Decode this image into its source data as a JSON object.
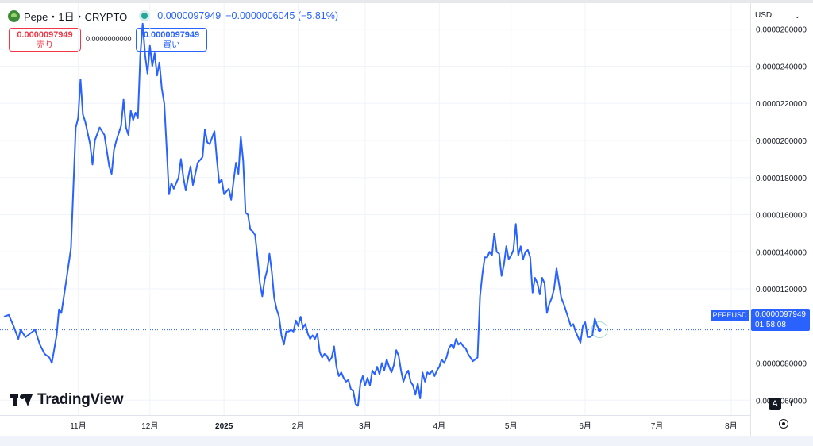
{
  "header": {
    "title": "Pepe・1日・CRYPTO",
    "price": "0.0000097949",
    "change": "−0.0000006045 (−5.81%)"
  },
  "trade": {
    "sell_price": "0.0000097949",
    "sell_label": "売り",
    "spread": "0.0000000000",
    "buy_price": "0.0000097949",
    "buy_label": "買い"
  },
  "currency": "USD",
  "watermark": "TradingView",
  "price_tag": {
    "pair": "PEPEUSD",
    "price": "0.0000097949",
    "countdown": "01:58:08"
  },
  "controls": {
    "auto": "A",
    "log": "L"
  },
  "colors": {
    "line": "#2962ff",
    "accent": "#2962ff",
    "sell": "#f23645",
    "live": "#26a69a"
  },
  "icons": [
    "pepe-logo-icon",
    "live-dot-icon",
    "chevron-down-icon",
    "tradingview-logo-icon",
    "gear-icon"
  ],
  "chart_data": {
    "type": "line",
    "title": "",
    "xlabel": "",
    "ylabel": "",
    "grid": true,
    "legend": "none",
    "ylim": [
      5.2e-06,
      2.74e-05
    ],
    "yticks": [
      "0.0000260000",
      "0.0000240000",
      "0.0000220000",
      "0.0000200000",
      "0.0000180000",
      "0.0000160000",
      "0.0000140000",
      "0.0000120000",
      "0.0000080000",
      "0.0000060000"
    ],
    "ytick_values": [
      2.6e-05,
      2.4e-05,
      2.2e-05,
      2e-05,
      1.8e-05,
      1.6e-05,
      1.4e-05,
      1.2e-05,
      8e-06,
      6e-06
    ],
    "xticks": [
      {
        "label": "11月",
        "day": 31
      },
      {
        "label": "12月",
        "day": 61
      },
      {
        "label": "2025",
        "day": 92
      },
      {
        "label": "2月",
        "day": 123
      },
      {
        "label": "3月",
        "day": 151
      },
      {
        "label": "4月",
        "day": 182
      },
      {
        "label": "5月",
        "day": 212
      },
      {
        "label": "6月",
        "day": 243
      },
      {
        "label": "7月",
        "day": 273
      },
      {
        "label": "8月",
        "day": 304
      }
    ],
    "last_value": 9.7949e-06,
    "series": [
      {
        "name": "",
        "values": [
          [
            0,
            1.05e-05
          ],
          [
            2,
            1.06e-05
          ],
          [
            4,
            1e-05
          ],
          [
            6,
            9.3e-06
          ],
          [
            7,
            9.8e-06
          ],
          [
            9,
            9.4e-06
          ],
          [
            11,
            9.6e-06
          ],
          [
            13,
            9.8e-06
          ],
          [
            15,
            9e-06
          ],
          [
            17,
            8.5e-06
          ],
          [
            19,
            8.3e-06
          ],
          [
            20,
            8e-06
          ],
          [
            22,
            9.5e-06
          ],
          [
            23,
            1.09e-05
          ],
          [
            24,
            1.07e-05
          ],
          [
            26,
            1.24e-05
          ],
          [
            28,
            1.42e-05
          ],
          [
            30,
            2.07e-05
          ],
          [
            31,
            2.12e-05
          ],
          [
            32,
            2.33e-05
          ],
          [
            33,
            2.14e-05
          ],
          [
            34,
            2.1e-05
          ],
          [
            36,
            1.98e-05
          ],
          [
            37,
            1.87e-05
          ],
          [
            38,
            2e-05
          ],
          [
            40,
            2.07e-05
          ],
          [
            42,
            2.03e-05
          ],
          [
            44,
            1.86e-05
          ],
          [
            45,
            1.82e-05
          ],
          [
            46,
            1.95e-05
          ],
          [
            47,
            2e-05
          ],
          [
            49,
            2.08e-05
          ],
          [
            50,
            2.22e-05
          ],
          [
            51,
            2.07e-05
          ],
          [
            52,
            2.03e-05
          ],
          [
            53,
            2.16e-05
          ],
          [
            54,
            2.11e-05
          ],
          [
            55,
            2.15e-05
          ],
          [
            56,
            2.12e-05
          ],
          [
            57,
            2.46e-05
          ],
          [
            58,
            2.63e-05
          ],
          [
            59,
            2.46e-05
          ],
          [
            60,
            2.36e-05
          ],
          [
            61,
            2.51e-05
          ],
          [
            62,
            2.4e-05
          ],
          [
            63,
            2.47e-05
          ],
          [
            64,
            2.35e-05
          ],
          [
            65,
            2.42e-05
          ],
          [
            66,
            2.28e-05
          ],
          [
            67,
            2.2e-05
          ],
          [
            68,
            1.96e-05
          ],
          [
            69,
            1.71e-05
          ],
          [
            70,
            1.77e-05
          ],
          [
            71,
            1.74e-05
          ],
          [
            73,
            1.8e-05
          ],
          [
            74,
            1.9e-05
          ],
          [
            75,
            1.8e-05
          ],
          [
            76,
            1.73e-05
          ],
          [
            77,
            1.8e-05
          ],
          [
            78,
            1.86e-05
          ],
          [
            79,
            1.76e-05
          ],
          [
            81,
            1.88e-05
          ],
          [
            83,
            1.91e-05
          ],
          [
            84,
            2.06e-05
          ],
          [
            85,
            1.99e-05
          ],
          [
            86,
            1.98e-05
          ],
          [
            88,
            2.05e-05
          ],
          [
            89,
            1.9e-05
          ],
          [
            90,
            1.77e-05
          ],
          [
            91,
            1.79e-05
          ],
          [
            92,
            1.71e-05
          ],
          [
            94,
            1.74e-05
          ],
          [
            95,
            1.68e-05
          ],
          [
            96,
            1.78e-05
          ],
          [
            97,
            1.88e-05
          ],
          [
            98,
            1.82e-05
          ],
          [
            99,
            2.02e-05
          ],
          [
            100,
            1.89e-05
          ],
          [
            101,
            1.61e-05
          ],
          [
            102,
            1.6e-05
          ],
          [
            103,
            1.52e-05
          ],
          [
            104,
            1.51e-05
          ],
          [
            105,
            1.49e-05
          ],
          [
            106,
            1.37e-05
          ],
          [
            107,
            1.23e-05
          ],
          [
            108,
            1.16e-05
          ],
          [
            109,
            1.25e-05
          ],
          [
            110,
            1.3e-05
          ],
          [
            111,
            1.39e-05
          ],
          [
            112,
            1.29e-05
          ],
          [
            113,
            1.15e-05
          ],
          [
            114,
            1.09e-05
          ],
          [
            115,
            1.05e-05
          ],
          [
            116,
            9.5e-06
          ],
          [
            117,
            9e-06
          ],
          [
            118,
            9.7e-06
          ],
          [
            119,
            9.7e-06
          ],
          [
            120,
            9.8e-06
          ],
          [
            121,
            9.7e-06
          ],
          [
            122,
            1.03e-05
          ],
          [
            123,
            1e-05
          ],
          [
            124,
            1.05e-05
          ],
          [
            125,
            9.9e-06
          ],
          [
            126,
            1.01e-05
          ],
          [
            127,
            9.6e-06
          ],
          [
            128,
            9.3e-06
          ],
          [
            129,
            9.5e-06
          ],
          [
            130,
            9.3e-06
          ],
          [
            131,
            9.6e-06
          ],
          [
            132,
            8.6e-06
          ],
          [
            133,
            8.3e-06
          ],
          [
            134,
            8.5e-06
          ],
          [
            135,
            8.4e-06
          ],
          [
            136,
            8.1e-06
          ],
          [
            137,
            8.3e-06
          ],
          [
            138,
            8.9e-06
          ],
          [
            139,
            7.8e-06
          ],
          [
            140,
            7.3e-06
          ],
          [
            141,
            7.5e-06
          ],
          [
            142,
            7.2e-06
          ],
          [
            143,
            7e-06
          ],
          [
            144,
            7.1e-06
          ],
          [
            145,
            6.6e-06
          ],
          [
            146,
            6.5e-06
          ],
          [
            147,
            5.8e-06
          ],
          [
            148,
            5.7e-06
          ],
          [
            149,
            6.9e-06
          ],
          [
            150,
            7.3e-06
          ],
          [
            151,
            6.8e-06
          ],
          [
            152,
            7.2e-06
          ],
          [
            153,
            6.8e-06
          ],
          [
            154,
            7.6e-06
          ],
          [
            155,
            7.4e-06
          ],
          [
            156,
            7.8e-06
          ],
          [
            157,
            7.4e-06
          ],
          [
            158,
            8e-06
          ],
          [
            159,
            7.6e-06
          ],
          [
            160,
            8.2e-06
          ],
          [
            161,
            7.8e-06
          ],
          [
            162,
            7.5e-06
          ],
          [
            163,
            7.9e-06
          ],
          [
            164,
            8.7e-06
          ],
          [
            165,
            8.4e-06
          ],
          [
            166,
            7.6e-06
          ],
          [
            167,
            7e-06
          ],
          [
            168,
            7.4e-06
          ],
          [
            169,
            7.6e-06
          ],
          [
            170,
            7e-06
          ],
          [
            171,
            6.8e-06
          ],
          [
            172,
            6.3e-06
          ],
          [
            173,
            6.9e-06
          ],
          [
            174,
            6.1e-06
          ],
          [
            175,
            7.5e-06
          ],
          [
            176,
            7e-06
          ],
          [
            177,
            7.5e-06
          ],
          [
            178,
            7.4e-06
          ],
          [
            179,
            7.6e-06
          ],
          [
            180,
            7.3e-06
          ],
          [
            181,
            7.6e-06
          ],
          [
            182,
            7.8e-06
          ],
          [
            183,
            8.2e-06
          ],
          [
            184,
            8e-06
          ],
          [
            185,
            8.3e-06
          ],
          [
            186,
            8.8e-06
          ],
          [
            187,
            9e-06
          ],
          [
            188,
            8.8e-06
          ],
          [
            189,
            9.3e-06
          ],
          [
            190,
            9e-06
          ],
          [
            191,
            9.1e-06
          ],
          [
            192,
            8.9e-06
          ],
          [
            193,
            8.8e-06
          ],
          [
            194,
            8.5e-06
          ],
          [
            195,
            8.3e-06
          ],
          [
            196,
            8.1e-06
          ],
          [
            197,
            8.2e-06
          ],
          [
            198,
            8.3e-06
          ],
          [
            199,
            1.16e-05
          ],
          [
            200,
            1.28e-05
          ],
          [
            201,
            1.37e-05
          ],
          [
            202,
            1.37e-05
          ],
          [
            203,
            1.4e-05
          ],
          [
            204,
            1.38e-05
          ],
          [
            205,
            1.5e-05
          ],
          [
            206,
            1.4e-05
          ],
          [
            207,
            1.39e-05
          ],
          [
            208,
            1.27e-05
          ],
          [
            209,
            1.33e-05
          ],
          [
            210,
            1.43e-05
          ],
          [
            211,
            1.36e-05
          ],
          [
            212,
            1.38e-05
          ],
          [
            213,
            1.41e-05
          ],
          [
            214,
            1.55e-05
          ],
          [
            215,
            1.38e-05
          ],
          [
            216,
            1.43e-05
          ],
          [
            217,
            1.36e-05
          ],
          [
            218,
            1.4e-05
          ],
          [
            219,
            1.41e-05
          ],
          [
            220,
            1.37e-05
          ],
          [
            221,
            1.18e-05
          ],
          [
            222,
            1.26e-05
          ],
          [
            223,
            1.23e-05
          ],
          [
            224,
            1.17e-05
          ],
          [
            225,
            1.26e-05
          ],
          [
            226,
            1.23e-05
          ],
          [
            227,
            1.07e-05
          ],
          [
            228,
            1.12e-05
          ],
          [
            229,
            1.15e-05
          ],
          [
            230,
            1.2e-05
          ],
          [
            231,
            1.31e-05
          ],
          [
            232,
            1.23e-05
          ],
          [
            233,
            1.15e-05
          ],
          [
            234,
            1.12e-05
          ],
          [
            235,
            1.08e-05
          ],
          [
            236,
            1.04e-05
          ],
          [
            237,
            1e-05
          ],
          [
            238,
            1.01e-05
          ],
          [
            239,
            9.7e-06
          ],
          [
            240,
            9.4e-06
          ],
          [
            241,
            9.1e-06
          ],
          [
            242,
            1e-05
          ],
          [
            243,
            1.02e-05
          ],
          [
            244,
            9.4e-06
          ],
          [
            245,
            9.4e-06
          ],
          [
            246,
            9.5e-06
          ],
          [
            247,
            1.04e-05
          ],
          [
            248,
            1e-05
          ],
          [
            249,
            9.8e-06
          ]
        ]
      }
    ]
  }
}
